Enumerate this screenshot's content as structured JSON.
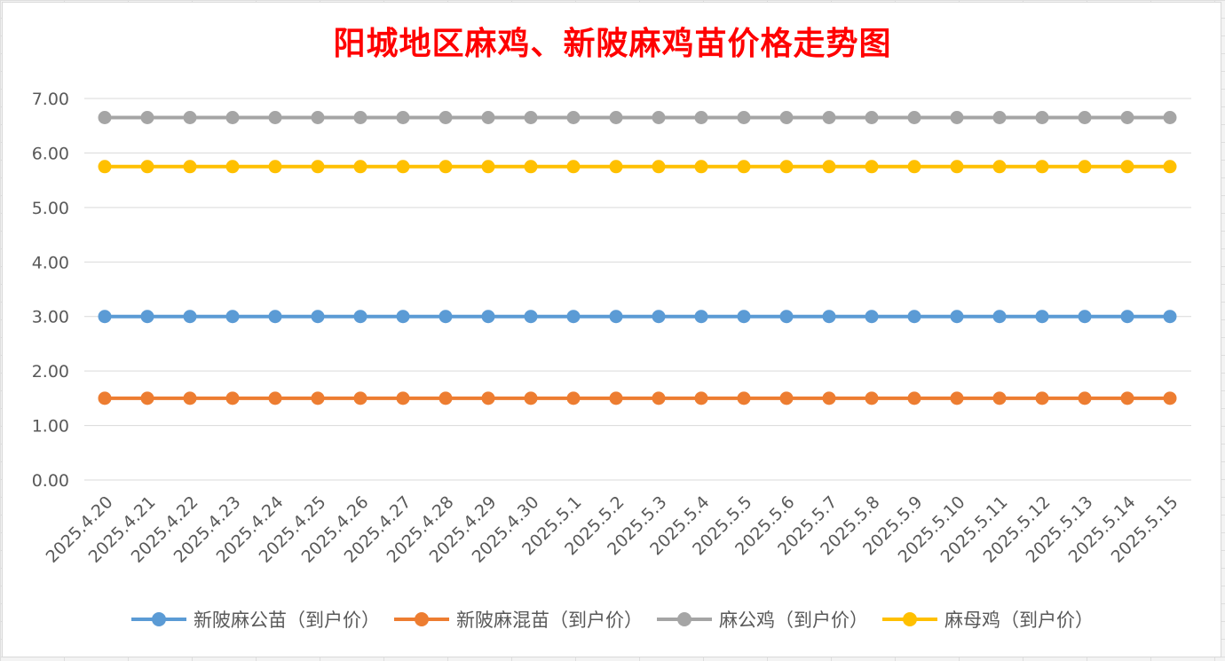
{
  "chart_data": {
    "type": "line",
    "title": "阳城地区麻鸡、新陂麻鸡苗价格走势图",
    "xlabel": "",
    "ylabel": "",
    "ylim": [
      0,
      7
    ],
    "y_ticks": [
      "0.00",
      "1.00",
      "2.00",
      "3.00",
      "4.00",
      "5.00",
      "6.00",
      "7.00"
    ],
    "grid": true,
    "legend_position": "bottom",
    "categories": [
      "2025.4.20",
      "2025.4.21",
      "2025.4.22",
      "2025.4.23",
      "2025.4.24",
      "2025.4.25",
      "2025.4.26",
      "2025.4.27",
      "2025.4.28",
      "2025.4.29",
      "2025.4.30",
      "2025.5.1",
      "2025.5.2",
      "2025.5.3",
      "2025.5.4",
      "2025.5.5",
      "2025.5.6",
      "2025.5.7",
      "2025.5.8",
      "2025.5.9",
      "2025.5.10",
      "2025.5.11",
      "2025.5.12",
      "2025.5.13",
      "2025.5.14",
      "2025.5.15"
    ],
    "series": [
      {
        "name": "新陂麻公苗（到户价）",
        "color": "#5b9bd5",
        "values": [
          3,
          3,
          3,
          3,
          3,
          3,
          3,
          3,
          3,
          3,
          3,
          3,
          3,
          3,
          3,
          3,
          3,
          3,
          3,
          3,
          3,
          3,
          3,
          3,
          3,
          3
        ]
      },
      {
        "name": "新陂麻混苗（到户价）",
        "color": "#ed7d31",
        "values": [
          1.5,
          1.5,
          1.5,
          1.5,
          1.5,
          1.5,
          1.5,
          1.5,
          1.5,
          1.5,
          1.5,
          1.5,
          1.5,
          1.5,
          1.5,
          1.5,
          1.5,
          1.5,
          1.5,
          1.5,
          1.5,
          1.5,
          1.5,
          1.5,
          1.5,
          1.5
        ]
      },
      {
        "name": "麻公鸡（到户价）",
        "color": "#a5a5a5",
        "values": [
          6.65,
          6.65,
          6.65,
          6.65,
          6.65,
          6.65,
          6.65,
          6.65,
          6.65,
          6.65,
          6.65,
          6.65,
          6.65,
          6.65,
          6.65,
          6.65,
          6.65,
          6.65,
          6.65,
          6.65,
          6.65,
          6.65,
          6.65,
          6.65,
          6.65,
          6.65
        ]
      },
      {
        "name": "麻母鸡（到户价）",
        "color": "#ffc000",
        "values": [
          5.75,
          5.75,
          5.75,
          5.75,
          5.75,
          5.75,
          5.75,
          5.75,
          5.75,
          5.75,
          5.75,
          5.75,
          5.75,
          5.75,
          5.75,
          5.75,
          5.75,
          5.75,
          5.75,
          5.75,
          5.75,
          5.75,
          5.75,
          5.75,
          5.75,
          5.75
        ]
      }
    ]
  }
}
